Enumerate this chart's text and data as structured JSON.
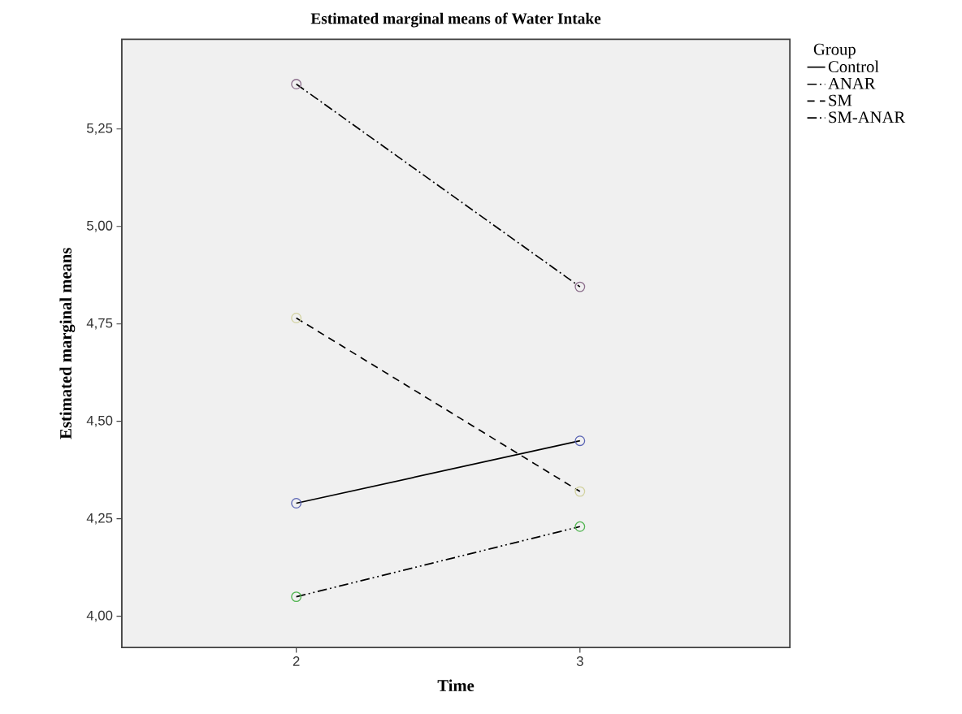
{
  "chart_data": {
    "type": "line",
    "title": "Estimated marginal means of Water Intake",
    "xlabel": "Time",
    "ylabel": "Estimated marginal means",
    "legend_title": "Group",
    "categories": [
      "2",
      "3"
    ],
    "series": [
      {
        "name": "Control",
        "color": "#000000",
        "colors": [
          "#5a64b4",
          "#5a64b4"
        ],
        "line_style": "solid",
        "values": [
          4.29,
          4.45
        ]
      },
      {
        "name": "ANAR",
        "color": "#000000",
        "colors": [
          "#8c6e8c",
          "#8c6e8c"
        ],
        "line_style": "dashdot",
        "values": [
          5.365,
          4.845
        ]
      },
      {
        "name": "SM",
        "color": "#000000",
        "colors": [
          "#d2d2a0",
          "#d2d2a0"
        ],
        "line_style": "dashed",
        "values": [
          4.765,
          4.32
        ]
      },
      {
        "name": "SM-ANAR",
        "color": "#000000",
        "colors": [
          "#50b450",
          "#50b450"
        ],
        "line_style": "dashdotdot",
        "values": [
          4.05,
          4.23
        ]
      }
    ],
    "ylim": [
      3.92,
      5.48
    ],
    "yticks": [
      {
        "value": 4.0,
        "label": "4,00"
      },
      {
        "value": 4.25,
        "label": "4,25"
      },
      {
        "value": 4.5,
        "label": "4,50"
      },
      {
        "value": 4.75,
        "label": "4,75"
      },
      {
        "value": 5.0,
        "label": "5,00"
      },
      {
        "value": 5.25,
        "label": "5,25"
      }
    ],
    "grid": false,
    "legend": "right",
    "marker": "circle"
  }
}
